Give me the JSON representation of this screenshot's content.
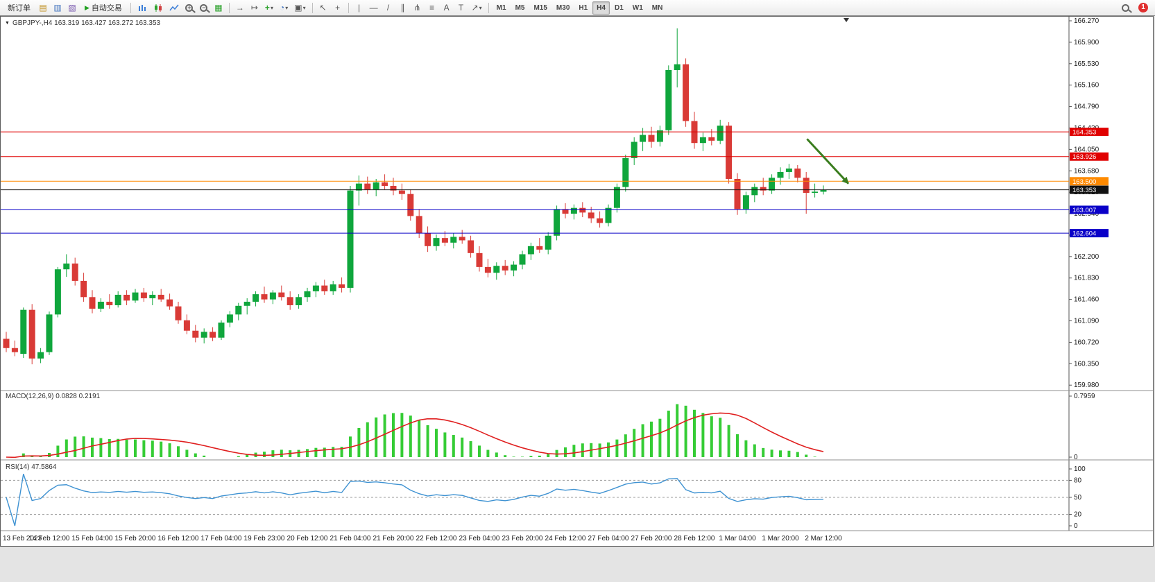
{
  "toolbar": {
    "new_order_label": "新订单",
    "autotrading_label": "自动交易",
    "timeframes": [
      "M1",
      "M5",
      "M15",
      "M30",
      "H1",
      "H4",
      "D1",
      "W1",
      "MN"
    ],
    "active_timeframe": "H4",
    "notification_count": "1"
  },
  "icons": {
    "triangle_down": "▼",
    "play": "▶",
    "new_chart": "▤",
    "profiles": "▥",
    "data_window": "▧",
    "bar_chart": "bars",
    "candlestick_chart": "candles",
    "line_chart": "line",
    "tile_windows": "▦",
    "auto_scroll": "→",
    "chart_shift": "↦",
    "indicators_plus": "+",
    "periods_clock": "◔",
    "templates": "▣",
    "dropdown": "▾",
    "cursor": "↖",
    "crosshair": "+",
    "vertical_line": "|",
    "horizontal_line": "—",
    "trendline": "/",
    "channel": "∥",
    "pitchfork": "⋔",
    "fibonacci": "≡",
    "text_tool": "A",
    "label_tool": "T",
    "shapes": "↗"
  },
  "chart_data": {
    "type": "candlestick",
    "symbol": "GBPJPY-",
    "timeframe": "H4",
    "symbol_ohlc": "GBPJPY-,H4  163.319 163.427 163.272 163.353",
    "ohlc_current": {
      "open": 163.319,
      "high": 163.427,
      "low": 163.272,
      "close": 163.353
    },
    "price_axis": {
      "min": 159.98,
      "max": 166.27,
      "step": 0.37,
      "labels": [
        "166.270",
        "165.900",
        "165.530",
        "165.160",
        "164.790",
        "164.420",
        "164.050",
        "163.680",
        "163.310",
        "162.940",
        "162.570",
        "162.200",
        "161.830",
        "161.460",
        "161.090",
        "160.720",
        "160.350",
        "159.980"
      ]
    },
    "time_labels": [
      "13 Feb 2023",
      "14 Feb 12:00",
      "15 Feb 04:00",
      "15 Feb 20:00",
      "16 Feb 12:00",
      "17 Feb 04:00",
      "19 Feb 23:00",
      "20 Feb 12:00",
      "21 Feb 04:00",
      "21 Feb 20:00",
      "22 Feb 12:00",
      "23 Feb 04:00",
      "23 Feb 20:00",
      "24 Feb 12:00",
      "27 Feb 04:00",
      "27 Feb 20:00",
      "28 Feb 12:00",
      "1 Mar 04:00",
      "1 Mar 20:00",
      "2 Mar 12:00"
    ],
    "candles": [
      [
        160.78,
        160.9,
        160.55,
        160.62
      ],
      [
        160.62,
        160.75,
        160.48,
        160.55
      ],
      [
        160.52,
        161.32,
        160.45,
        161.28
      ],
      [
        161.28,
        161.38,
        160.34,
        160.44
      ],
      [
        160.44,
        160.62,
        160.36,
        160.55
      ],
      [
        160.55,
        161.25,
        160.5,
        161.2
      ],
      [
        161.2,
        162.02,
        161.15,
        161.98
      ],
      [
        161.98,
        162.24,
        161.85,
        162.08
      ],
      [
        162.08,
        162.18,
        161.7,
        161.78
      ],
      [
        161.78,
        161.92,
        161.42,
        161.5
      ],
      [
        161.5,
        161.62,
        161.22,
        161.3
      ],
      [
        161.3,
        161.48,
        161.24,
        161.42
      ],
      [
        161.42,
        161.55,
        161.3,
        161.36
      ],
      [
        161.36,
        161.6,
        161.32,
        161.54
      ],
      [
        161.54,
        161.62,
        161.36,
        161.44
      ],
      [
        161.44,
        161.64,
        161.4,
        161.58
      ],
      [
        161.58,
        161.66,
        161.42,
        161.48
      ],
      [
        161.48,
        161.6,
        161.36,
        161.54
      ],
      [
        161.54,
        161.64,
        161.42,
        161.46
      ],
      [
        161.46,
        161.56,
        161.28,
        161.34
      ],
      [
        161.34,
        161.42,
        161.04,
        161.1
      ],
      [
        161.1,
        161.2,
        160.86,
        160.92
      ],
      [
        160.92,
        161.02,
        160.72,
        160.8
      ],
      [
        160.8,
        160.96,
        160.7,
        160.9
      ],
      [
        160.9,
        160.98,
        160.74,
        160.8
      ],
      [
        160.8,
        161.1,
        160.76,
        161.06
      ],
      [
        161.06,
        161.26,
        160.98,
        161.2
      ],
      [
        161.2,
        161.4,
        161.1,
        161.35
      ],
      [
        161.35,
        161.48,
        161.2,
        161.42
      ],
      [
        161.42,
        161.6,
        161.34,
        161.55
      ],
      [
        161.55,
        161.68,
        161.4,
        161.46
      ],
      [
        161.46,
        161.62,
        161.38,
        161.58
      ],
      [
        161.58,
        161.7,
        161.44,
        161.5
      ],
      [
        161.5,
        161.6,
        161.28,
        161.36
      ],
      [
        161.36,
        161.55,
        161.3,
        161.5
      ],
      [
        161.5,
        161.66,
        161.42,
        161.6
      ],
      [
        161.6,
        161.76,
        161.5,
        161.7
      ],
      [
        161.7,
        161.8,
        161.54,
        161.6
      ],
      [
        161.6,
        161.78,
        161.54,
        161.72
      ],
      [
        161.72,
        161.84,
        161.58,
        161.66
      ],
      [
        161.66,
        163.42,
        161.58,
        163.34
      ],
      [
        163.34,
        163.6,
        163.08,
        163.46
      ],
      [
        163.46,
        163.58,
        163.28,
        163.36
      ],
      [
        163.36,
        163.54,
        163.24,
        163.48
      ],
      [
        163.48,
        163.62,
        163.36,
        163.42
      ],
      [
        163.42,
        163.56,
        163.26,
        163.34
      ],
      [
        163.34,
        163.46,
        163.18,
        163.28
      ],
      [
        163.28,
        163.36,
        162.82,
        162.9
      ],
      [
        162.9,
        163.02,
        162.52,
        162.6
      ],
      [
        162.6,
        162.72,
        162.28,
        162.38
      ],
      [
        162.38,
        162.58,
        162.3,
        162.52
      ],
      [
        162.52,
        162.64,
        162.38,
        162.44
      ],
      [
        162.44,
        162.6,
        162.34,
        162.54
      ],
      [
        162.54,
        162.66,
        162.42,
        162.48
      ],
      [
        162.48,
        162.56,
        162.18,
        162.26
      ],
      [
        162.26,
        162.38,
        161.94,
        162.02
      ],
      [
        162.02,
        162.16,
        161.84,
        161.92
      ],
      [
        161.92,
        162.1,
        161.8,
        162.04
      ],
      [
        162.04,
        162.14,
        161.88,
        161.96
      ],
      [
        161.96,
        162.12,
        161.86,
        162.06
      ],
      [
        162.06,
        162.3,
        161.98,
        162.24
      ],
      [
        162.24,
        162.44,
        162.14,
        162.38
      ],
      [
        162.38,
        162.52,
        162.26,
        162.32
      ],
      [
        162.32,
        162.62,
        162.24,
        162.56
      ],
      [
        162.56,
        163.08,
        162.48,
        163.02
      ],
      [
        163.02,
        163.12,
        162.86,
        162.94
      ],
      [
        162.94,
        163.1,
        162.84,
        163.04
      ],
      [
        163.04,
        163.14,
        162.88,
        162.96
      ],
      [
        162.96,
        163.06,
        162.78,
        162.86
      ],
      [
        162.86,
        162.98,
        162.7,
        162.78
      ],
      [
        162.78,
        163.1,
        162.72,
        163.04
      ],
      [
        163.04,
        163.46,
        162.96,
        163.4
      ],
      [
        163.4,
        163.96,
        163.32,
        163.9
      ],
      [
        163.9,
        164.26,
        163.78,
        164.18
      ],
      [
        164.18,
        164.42,
        164.02,
        164.3
      ],
      [
        164.3,
        164.44,
        164.08,
        164.18
      ],
      [
        164.18,
        164.46,
        164.1,
        164.38
      ],
      [
        164.38,
        165.5,
        164.3,
        165.42
      ],
      [
        165.42,
        166.14,
        165.12,
        165.52
      ],
      [
        165.52,
        165.62,
        164.44,
        164.54
      ],
      [
        164.54,
        164.7,
        164.06,
        164.16
      ],
      [
        164.16,
        164.34,
        164.02,
        164.26
      ],
      [
        164.26,
        164.4,
        164.12,
        164.2
      ],
      [
        164.2,
        164.56,
        164.14,
        164.46
      ],
      [
        164.46,
        164.52,
        163.46,
        163.54
      ],
      [
        163.54,
        163.64,
        162.92,
        163.02
      ],
      [
        163.02,
        163.32,
        162.94,
        163.26
      ],
      [
        163.26,
        163.46,
        163.14,
        163.4
      ],
      [
        163.4,
        163.56,
        163.26,
        163.34
      ],
      [
        163.34,
        163.62,
        163.28,
        163.56
      ],
      [
        163.56,
        163.74,
        163.44,
        163.66
      ],
      [
        163.66,
        163.8,
        163.54,
        163.72
      ],
      [
        163.72,
        163.78,
        163.48,
        163.56
      ],
      [
        163.56,
        163.66,
        162.94,
        163.3
      ],
      [
        163.3,
        163.46,
        163.22,
        163.32
      ],
      [
        163.319,
        163.427,
        163.272,
        163.353
      ]
    ],
    "hlines": [
      {
        "price": 164.353,
        "color": "#e00000"
      },
      {
        "price": 163.926,
        "color": "#e00000"
      },
      {
        "price": 163.5,
        "color": "#ff8a00"
      },
      {
        "price": 163.353,
        "color": "#111111"
      },
      {
        "price": 163.007,
        "color": "#0a00c8"
      },
      {
        "price": 162.604,
        "color": "#0a00c8"
      }
    ],
    "trend_arrow": {
      "from_index": 93.1,
      "from_price": 164.23,
      "to_index": 97.9,
      "to_price": 163.46,
      "color": "#3a7d1e"
    },
    "macd": {
      "label": "MACD(12,26,9) 0.0828 0.2191",
      "params": [
        12,
        26,
        9
      ],
      "current_value": 0.0828,
      "current_signal": 0.2191,
      "max_label": "0.7959",
      "min_label": "0",
      "histogram_color": "#35cc35",
      "signal_color": "#e02020"
    },
    "rsi": {
      "label": "RSI(14) 47.5864",
      "period": 14,
      "current_value": 47.5864,
      "levels": [
        80,
        50,
        20
      ],
      "axis_labels": [
        "100",
        "80",
        "50",
        "20",
        "0"
      ],
      "line_color": "#3e92d2"
    },
    "colors": {
      "up": "#0fa63c",
      "down": "#d93a36",
      "axis_text": "#1a1a1a"
    }
  }
}
